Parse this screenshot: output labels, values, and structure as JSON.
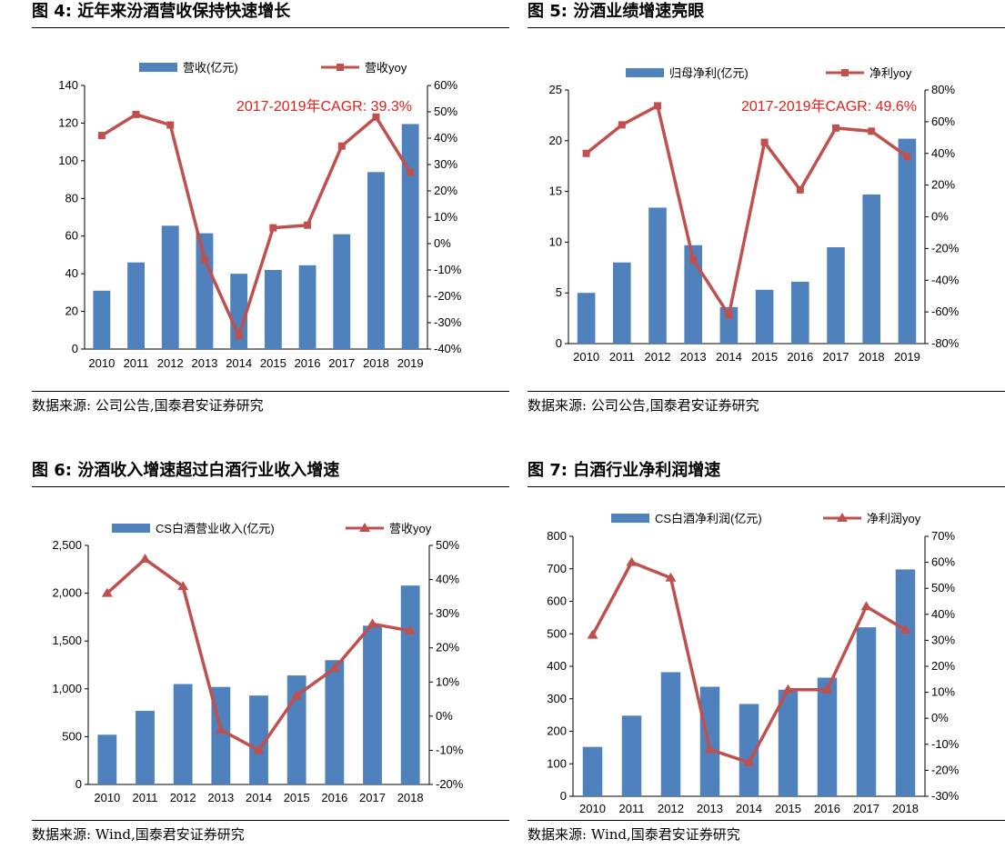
{
  "colors": {
    "bar": "#4f81bd",
    "line": "#c0504d",
    "annotation": "#e0201c"
  },
  "panels": [
    {
      "title": "图 4:  近年来汾酒营收保持快速增长",
      "source": "数据来源:  公司公告,国泰君安证券研究",
      "legend_bar": "营收(亿元)",
      "legend_line": "营收yoy",
      "annotation": "2017-2019年CAGR: 39.3%",
      "marker": "square"
    },
    {
      "title": "图 5:  汾酒业绩增速亮眼",
      "source": "数据来源:  公司公告,国泰君安证券研究",
      "legend_bar": "归母净利(亿元)",
      "legend_line": "净利yoy",
      "annotation": "2017-2019年CAGR: 49.6%",
      "marker": "square"
    },
    {
      "title": "图 6:  汾酒收入增速超过白酒行业收入增速",
      "source": "数据来源:  Wind,国泰君安证券研究",
      "legend_bar": "CS白酒营业收入(亿元)",
      "legend_line": "营收yoy",
      "annotation": "",
      "marker": "triangle"
    },
    {
      "title": "图 7:  白酒行业净利润增速",
      "source": "数据来源:  Wind,国泰君安证券研究",
      "legend_bar": "CS白酒净利润(亿元)",
      "legend_line": "净利润yoy",
      "annotation": "",
      "marker": "triangle"
    }
  ],
  "chart_data": [
    {
      "type": "bar+line",
      "categories": [
        "2010",
        "2011",
        "2012",
        "2013",
        "2014",
        "2015",
        "2016",
        "2017",
        "2018",
        "2019"
      ],
      "series": [
        {
          "name": "营收(亿元)",
          "type": "bar",
          "axis": "left",
          "values": [
            31,
            46,
            65.5,
            61.5,
            40,
            42,
            44.5,
            61,
            94,
            119.5
          ]
        },
        {
          "name": "营收yoy",
          "type": "line",
          "axis": "right",
          "values": [
            41,
            49,
            45,
            -6,
            -35,
            6,
            7,
            37,
            48,
            27
          ]
        }
      ],
      "left_axis": {
        "min": 0,
        "max": 140,
        "step": 20,
        "ticks": [
          "0",
          "20",
          "40",
          "60",
          "80",
          "100",
          "120",
          "140"
        ]
      },
      "right_axis": {
        "min": -40,
        "max": 60,
        "step": 10,
        "ticks": [
          "-40%",
          "-30%",
          "-20%",
          "-10%",
          "0%",
          "10%",
          "20%",
          "30%",
          "40%",
          "50%",
          "60%"
        ]
      },
      "grid": false
    },
    {
      "type": "bar+line",
      "categories": [
        "2010",
        "2011",
        "2012",
        "2013",
        "2014",
        "2015",
        "2016",
        "2017",
        "2018",
        "2019"
      ],
      "series": [
        {
          "name": "归母净利(亿元)",
          "type": "bar",
          "axis": "left",
          "values": [
            5,
            8,
            13.4,
            9.7,
            3.6,
            5.3,
            6.1,
            9.5,
            14.7,
            20.2
          ]
        },
        {
          "name": "净利yoy",
          "type": "line",
          "axis": "right",
          "values": [
            40,
            58,
            70,
            -27,
            -62,
            47,
            17,
            56,
            54,
            38
          ]
        }
      ],
      "left_axis": {
        "min": 0,
        "max": 25,
        "step": 5,
        "ticks": [
          "0",
          "5",
          "10",
          "15",
          "20",
          "25"
        ]
      },
      "right_axis": {
        "min": -80,
        "max": 80,
        "step": 20,
        "ticks": [
          "-80%",
          "-60%",
          "-40%",
          "-20%",
          "0%",
          "20%",
          "40%",
          "60%",
          "80%"
        ]
      },
      "grid": false
    },
    {
      "type": "bar+line",
      "categories": [
        "2010",
        "2011",
        "2012",
        "2013",
        "2014",
        "2015",
        "2016",
        "2017",
        "2018"
      ],
      "series": [
        {
          "name": "CS白酒营业收入(亿元)",
          "type": "bar",
          "axis": "left",
          "values": [
            520,
            770,
            1050,
            1020,
            930,
            1140,
            1300,
            1660,
            2080
          ]
        },
        {
          "name": "营收yoy",
          "type": "line",
          "axis": "right",
          "values": [
            36,
            46,
            38,
            -4,
            -10,
            6,
            14,
            27,
            25
          ]
        }
      ],
      "left_axis": {
        "min": 0,
        "max": 2500,
        "step": 500,
        "ticks": [
          "0",
          "500",
          "1,000",
          "1,500",
          "2,000",
          "2,500"
        ]
      },
      "right_axis": {
        "min": -20,
        "max": 50,
        "step": 10,
        "ticks": [
          "-20%",
          "-10%",
          "0%",
          "10%",
          "20%",
          "30%",
          "40%",
          "50%"
        ]
      },
      "grid": false
    },
    {
      "type": "bar+line",
      "categories": [
        "2010",
        "2011",
        "2012",
        "2013",
        "2014",
        "2015",
        "2016",
        "2017",
        "2018"
      ],
      "series": [
        {
          "name": "CS白酒净利润(亿元)",
          "type": "bar",
          "axis": "left",
          "values": [
            152,
            248,
            382,
            337,
            284,
            328,
            365,
            520,
            698
          ]
        },
        {
          "name": "净利润yoy",
          "type": "line",
          "axis": "right",
          "values": [
            32,
            60,
            54,
            -12,
            -17,
            11,
            11,
            43,
            34
          ]
        }
      ],
      "left_axis": {
        "min": 0,
        "max": 800,
        "step": 100,
        "ticks": [
          "0",
          "100",
          "200",
          "300",
          "400",
          "500",
          "600",
          "700",
          "800"
        ]
      },
      "right_axis": {
        "min": -30,
        "max": 70,
        "step": 10,
        "ticks": [
          "-30%",
          "-20%",
          "-10%",
          "0%",
          "10%",
          "20%",
          "30%",
          "40%",
          "50%",
          "60%",
          "70%"
        ]
      },
      "grid": false
    }
  ]
}
